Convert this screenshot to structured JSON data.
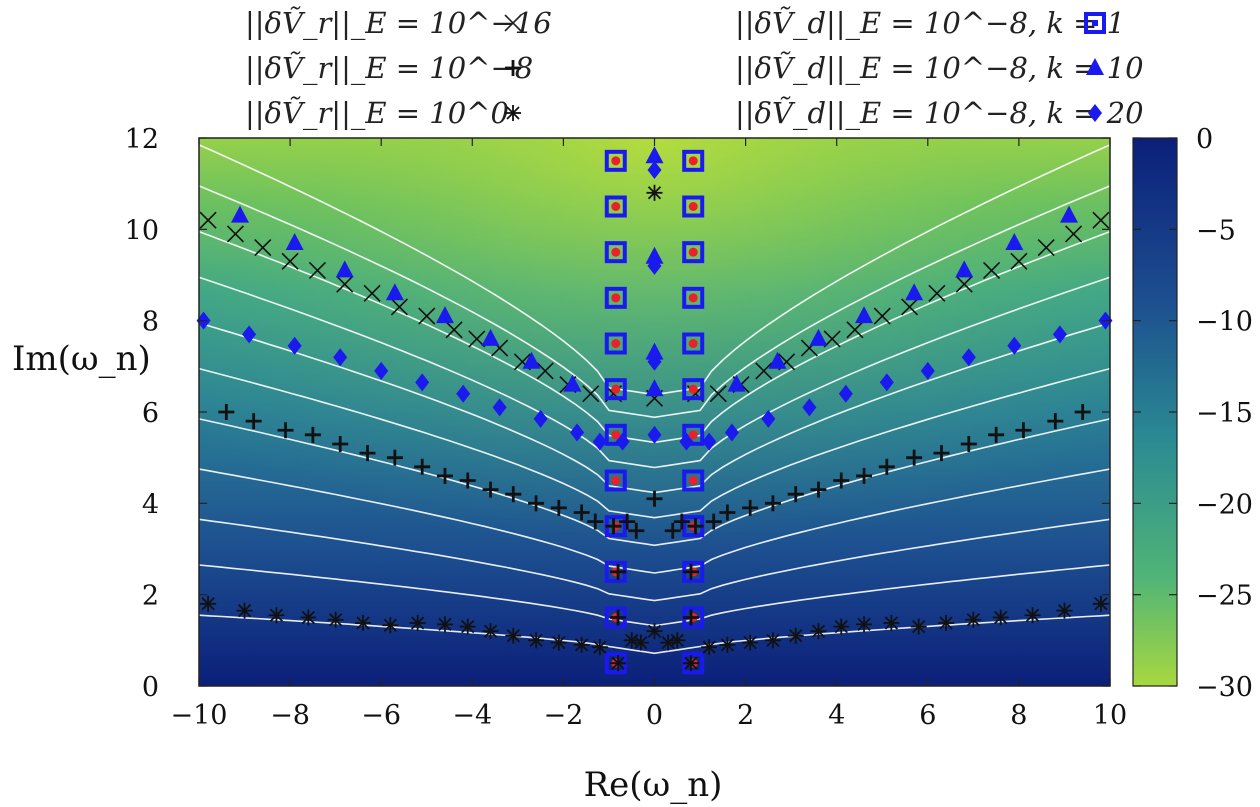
{
  "chart_data": {
    "type": "scatter",
    "xlabel": "Re(ω_n)",
    "ylabel": "Im(ω_n)",
    "xlim": [
      -10,
      10
    ],
    "ylim": [
      0,
      12
    ],
    "x_ticks": [
      "−10",
      "−8",
      "−6",
      "−4",
      "−2",
      "0",
      "2",
      "4",
      "6",
      "8",
      "10"
    ],
    "y_ticks": [
      "0",
      "2",
      "4",
      "6",
      "8",
      "10",
      "12"
    ],
    "colorbar": {
      "range": [
        -30,
        0
      ],
      "ticks": [
        "0",
        "−5",
        "−10",
        "−15",
        "−20",
        "−25",
        "−30"
      ],
      "low_color": "#0b1f7a",
      "mid_color": "#2a9d8f",
      "high_color": "#a8d840"
    },
    "legend": {
      "placement": "top",
      "entries": [
        {
          "text": "||δṼ_r||_E = 10^−16",
          "marker": "×"
        },
        {
          "text": "||δṼ_r||_E = 10^−8",
          "marker": "+"
        },
        {
          "text": "||δṼ_r||_E = 10^0",
          "marker": "✱"
        },
        {
          "text": "||δṼ_d||_E = 10^−8, k = 1",
          "marker": "square"
        },
        {
          "text": "||δṼ_d||_E = 10^−8, k = 10",
          "marker": "triangle"
        },
        {
          "text": "||δṼ_d||_E = 10^−8, k = 20",
          "marker": "diamond"
        }
      ]
    },
    "series": [
      {
        "name": "||δṼ_r||_E = 10^−16",
        "marker": "x",
        "color": "#111111",
        "points": [
          [
            -9.8,
            10.2
          ],
          [
            -9.2,
            9.9
          ],
          [
            -8.6,
            9.6
          ],
          [
            -8.0,
            9.3
          ],
          [
            -7.4,
            9.1
          ],
          [
            -6.8,
            8.8
          ],
          [
            -6.2,
            8.6
          ],
          [
            -5.6,
            8.3
          ],
          [
            -5.0,
            8.1
          ],
          [
            -4.4,
            7.8
          ],
          [
            -3.9,
            7.6
          ],
          [
            -3.4,
            7.4
          ],
          [
            -2.9,
            7.1
          ],
          [
            -2.4,
            6.9
          ],
          [
            -1.9,
            6.6
          ],
          [
            -1.4,
            6.4
          ],
          [
            -0.9,
            6.4
          ],
          [
            0.0,
            6.3
          ],
          [
            0.9,
            6.4
          ],
          [
            1.4,
            6.4
          ],
          [
            1.9,
            6.6
          ],
          [
            2.4,
            6.9
          ],
          [
            2.9,
            7.1
          ],
          [
            3.4,
            7.4
          ],
          [
            3.9,
            7.6
          ],
          [
            4.4,
            7.8
          ],
          [
            5.0,
            8.1
          ],
          [
            5.6,
            8.3
          ],
          [
            6.2,
            8.6
          ],
          [
            6.8,
            8.8
          ],
          [
            7.4,
            9.1
          ],
          [
            8.0,
            9.3
          ],
          [
            8.6,
            9.6
          ],
          [
            9.2,
            9.9
          ],
          [
            9.8,
            10.2
          ]
        ]
      },
      {
        "name": "||δṼ_r||_E = 10^−8",
        "marker": "plus",
        "color": "#111111",
        "points": [
          [
            -9.4,
            6.0
          ],
          [
            -8.8,
            5.8
          ],
          [
            -8.1,
            5.6
          ],
          [
            -7.5,
            5.5
          ],
          [
            -6.9,
            5.3
          ],
          [
            -6.3,
            5.1
          ],
          [
            -5.7,
            5.0
          ],
          [
            -5.1,
            4.8
          ],
          [
            -4.6,
            4.6
          ],
          [
            -4.1,
            4.5
          ],
          [
            -3.6,
            4.3
          ],
          [
            -3.1,
            4.2
          ],
          [
            -2.6,
            4.0
          ],
          [
            -2.1,
            3.9
          ],
          [
            -1.6,
            3.8
          ],
          [
            -1.3,
            3.6
          ],
          [
            -0.9,
            3.5
          ],
          [
            -0.6,
            3.6
          ],
          [
            -0.4,
            3.4
          ],
          [
            0.0,
            4.1
          ],
          [
            0.4,
            3.4
          ],
          [
            0.6,
            3.6
          ],
          [
            0.9,
            3.5
          ],
          [
            1.3,
            3.6
          ],
          [
            1.6,
            3.8
          ],
          [
            2.1,
            3.9
          ],
          [
            2.6,
            4.0
          ],
          [
            3.1,
            4.2
          ],
          [
            3.6,
            4.3
          ],
          [
            4.1,
            4.5
          ],
          [
            4.6,
            4.6
          ],
          [
            5.1,
            4.8
          ],
          [
            5.7,
            5.0
          ],
          [
            6.3,
            5.1
          ],
          [
            6.9,
            5.3
          ],
          [
            7.5,
            5.5
          ],
          [
            8.1,
            5.6
          ],
          [
            8.8,
            5.8
          ],
          [
            9.4,
            6.0
          ],
          [
            -0.8,
            2.5
          ],
          [
            0.8,
            2.5
          ],
          [
            -0.8,
            1.5
          ],
          [
            0.8,
            1.5
          ]
        ]
      },
      {
        "name": "||δṼ_r||_E = 10^0",
        "marker": "star",
        "color": "#111111",
        "points": [
          [
            -9.8,
            1.8
          ],
          [
            -9.0,
            1.65
          ],
          [
            -8.3,
            1.55
          ],
          [
            -7.6,
            1.5
          ],
          [
            -7.0,
            1.45
          ],
          [
            -6.4,
            1.38
          ],
          [
            -5.8,
            1.33
          ],
          [
            -5.2,
            1.38
          ],
          [
            -4.6,
            1.35
          ],
          [
            -4.1,
            1.3
          ],
          [
            -3.6,
            1.2
          ],
          [
            -3.1,
            1.1
          ],
          [
            -2.6,
            1.0
          ],
          [
            -2.1,
            0.95
          ],
          [
            -1.6,
            0.9
          ],
          [
            -1.2,
            0.85
          ],
          [
            -0.8,
            0.5
          ],
          [
            -0.5,
            1.0
          ],
          [
            -0.3,
            0.95
          ],
          [
            0.0,
            1.2
          ],
          [
            0.3,
            0.95
          ],
          [
            0.5,
            1.0
          ],
          [
            0.8,
            0.5
          ],
          [
            1.2,
            0.85
          ],
          [
            1.6,
            0.9
          ],
          [
            2.1,
            0.95
          ],
          [
            2.6,
            1.0
          ],
          [
            3.1,
            1.1
          ],
          [
            3.6,
            1.2
          ],
          [
            4.1,
            1.3
          ],
          [
            4.6,
            1.35
          ],
          [
            5.2,
            1.38
          ],
          [
            5.8,
            1.3
          ],
          [
            6.4,
            1.38
          ],
          [
            7.0,
            1.45
          ],
          [
            7.6,
            1.5
          ],
          [
            8.3,
            1.55
          ],
          [
            9.0,
            1.65
          ],
          [
            9.8,
            1.8
          ],
          [
            0.0,
            10.8
          ]
        ]
      },
      {
        "name": "||δṼ_d||_E = 10^−8, k = 1",
        "marker": "square",
        "color": "#1a1aee",
        "points": [
          [
            -0.85,
            0.5
          ],
          [
            -0.85,
            1.5
          ],
          [
            -0.85,
            2.5
          ],
          [
            -0.85,
            3.5
          ],
          [
            -0.85,
            4.5
          ],
          [
            -0.85,
            5.5
          ],
          [
            -0.85,
            6.5
          ],
          [
            -0.85,
            7.5
          ],
          [
            -0.85,
            8.5
          ],
          [
            -0.85,
            9.5
          ],
          [
            -0.85,
            10.5
          ],
          [
            -0.85,
            11.5
          ],
          [
            0.85,
            0.5
          ],
          [
            0.85,
            1.5
          ],
          [
            0.85,
            2.5
          ],
          [
            0.85,
            3.5
          ],
          [
            0.85,
            4.5
          ],
          [
            0.85,
            5.5
          ],
          [
            0.85,
            6.5
          ],
          [
            0.85,
            7.5
          ],
          [
            0.85,
            8.5
          ],
          [
            0.85,
            9.5
          ],
          [
            0.85,
            10.5
          ],
          [
            0.85,
            11.5
          ]
        ]
      },
      {
        "name": "||δṼ_d||_E = 10^−8, k = 10",
        "marker": "triangle",
        "color": "#1a1aee",
        "points": [
          [
            -9.1,
            10.3
          ],
          [
            -7.9,
            9.7
          ],
          [
            -6.8,
            9.1
          ],
          [
            -5.7,
            8.6
          ],
          [
            -4.6,
            8.1
          ],
          [
            -3.6,
            7.6
          ],
          [
            -2.7,
            7.1
          ],
          [
            -1.8,
            6.6
          ],
          [
            0.0,
            7.3
          ],
          [
            0.0,
            6.5
          ],
          [
            0.0,
            9.4
          ],
          [
            0.0,
            11.6
          ],
          [
            1.8,
            6.6
          ],
          [
            2.7,
            7.1
          ],
          [
            3.6,
            7.6
          ],
          [
            4.6,
            8.1
          ],
          [
            5.7,
            8.6
          ],
          [
            6.8,
            9.1
          ],
          [
            7.9,
            9.7
          ],
          [
            9.1,
            10.3
          ]
        ]
      },
      {
        "name": "||δṼ_d||_E = 10^−8, k = 20",
        "marker": "diamond",
        "color": "#1a1aee",
        "points": [
          [
            -9.9,
            8.0
          ],
          [
            -8.9,
            7.7
          ],
          [
            -7.9,
            7.45
          ],
          [
            -6.9,
            7.2
          ],
          [
            -6.0,
            6.9
          ],
          [
            -5.1,
            6.65
          ],
          [
            -4.2,
            6.4
          ],
          [
            -3.4,
            6.1
          ],
          [
            -2.5,
            5.85
          ],
          [
            -1.7,
            5.55
          ],
          [
            -1.2,
            5.35
          ],
          [
            -0.7,
            5.35
          ],
          [
            0.0,
            5.5
          ],
          [
            0.0,
            7.1
          ],
          [
            0.0,
            9.2
          ],
          [
            0.0,
            11.3
          ],
          [
            0.7,
            5.35
          ],
          [
            1.2,
            5.35
          ],
          [
            1.7,
            5.55
          ],
          [
            2.5,
            5.85
          ],
          [
            3.4,
            6.1
          ],
          [
            4.2,
            6.4
          ],
          [
            5.1,
            6.65
          ],
          [
            6.0,
            6.9
          ],
          [
            6.9,
            7.2
          ],
          [
            7.9,
            7.45
          ],
          [
            8.9,
            7.7
          ],
          [
            9.9,
            8.0
          ]
        ]
      }
    ]
  }
}
